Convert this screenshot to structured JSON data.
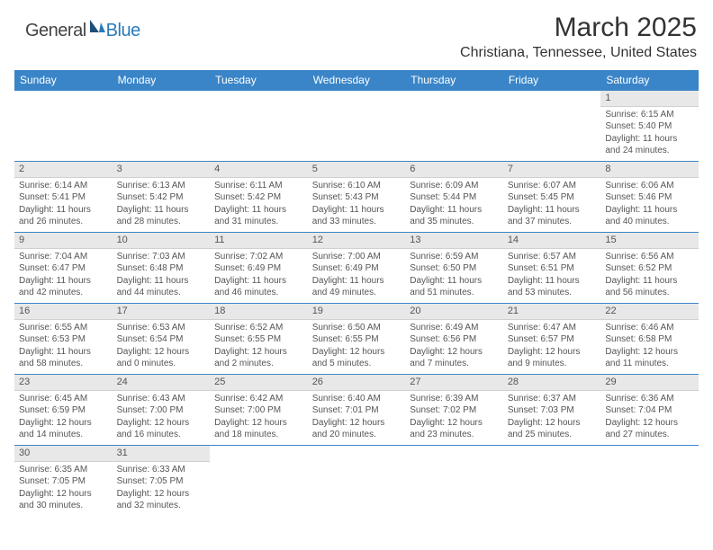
{
  "logo": {
    "general": "General",
    "blue": "Blue"
  },
  "title": "March 2025",
  "location": "Christiana, Tennessee, United States",
  "colors": {
    "header_bg": "#3a85c8",
    "header_text": "#ffffff",
    "divider": "#3a85c8",
    "daynum_bg": "#e8e8e8",
    "text": "#555555",
    "logo_blue": "#2a7ab8"
  },
  "weekdays": [
    "Sunday",
    "Monday",
    "Tuesday",
    "Wednesday",
    "Thursday",
    "Friday",
    "Saturday"
  ],
  "weeks": [
    [
      null,
      null,
      null,
      null,
      null,
      null,
      {
        "n": "1",
        "sr": "Sunrise: 6:15 AM",
        "ss": "Sunset: 5:40 PM",
        "dl": "Daylight: 11 hours and 24 minutes."
      }
    ],
    [
      {
        "n": "2",
        "sr": "Sunrise: 6:14 AM",
        "ss": "Sunset: 5:41 PM",
        "dl": "Daylight: 11 hours and 26 minutes."
      },
      {
        "n": "3",
        "sr": "Sunrise: 6:13 AM",
        "ss": "Sunset: 5:42 PM",
        "dl": "Daylight: 11 hours and 28 minutes."
      },
      {
        "n": "4",
        "sr": "Sunrise: 6:11 AM",
        "ss": "Sunset: 5:42 PM",
        "dl": "Daylight: 11 hours and 31 minutes."
      },
      {
        "n": "5",
        "sr": "Sunrise: 6:10 AM",
        "ss": "Sunset: 5:43 PM",
        "dl": "Daylight: 11 hours and 33 minutes."
      },
      {
        "n": "6",
        "sr": "Sunrise: 6:09 AM",
        "ss": "Sunset: 5:44 PM",
        "dl": "Daylight: 11 hours and 35 minutes."
      },
      {
        "n": "7",
        "sr": "Sunrise: 6:07 AM",
        "ss": "Sunset: 5:45 PM",
        "dl": "Daylight: 11 hours and 37 minutes."
      },
      {
        "n": "8",
        "sr": "Sunrise: 6:06 AM",
        "ss": "Sunset: 5:46 PM",
        "dl": "Daylight: 11 hours and 40 minutes."
      }
    ],
    [
      {
        "n": "9",
        "sr": "Sunrise: 7:04 AM",
        "ss": "Sunset: 6:47 PM",
        "dl": "Daylight: 11 hours and 42 minutes."
      },
      {
        "n": "10",
        "sr": "Sunrise: 7:03 AM",
        "ss": "Sunset: 6:48 PM",
        "dl": "Daylight: 11 hours and 44 minutes."
      },
      {
        "n": "11",
        "sr": "Sunrise: 7:02 AM",
        "ss": "Sunset: 6:49 PM",
        "dl": "Daylight: 11 hours and 46 minutes."
      },
      {
        "n": "12",
        "sr": "Sunrise: 7:00 AM",
        "ss": "Sunset: 6:49 PM",
        "dl": "Daylight: 11 hours and 49 minutes."
      },
      {
        "n": "13",
        "sr": "Sunrise: 6:59 AM",
        "ss": "Sunset: 6:50 PM",
        "dl": "Daylight: 11 hours and 51 minutes."
      },
      {
        "n": "14",
        "sr": "Sunrise: 6:57 AM",
        "ss": "Sunset: 6:51 PM",
        "dl": "Daylight: 11 hours and 53 minutes."
      },
      {
        "n": "15",
        "sr": "Sunrise: 6:56 AM",
        "ss": "Sunset: 6:52 PM",
        "dl": "Daylight: 11 hours and 56 minutes."
      }
    ],
    [
      {
        "n": "16",
        "sr": "Sunrise: 6:55 AM",
        "ss": "Sunset: 6:53 PM",
        "dl": "Daylight: 11 hours and 58 minutes."
      },
      {
        "n": "17",
        "sr": "Sunrise: 6:53 AM",
        "ss": "Sunset: 6:54 PM",
        "dl": "Daylight: 12 hours and 0 minutes."
      },
      {
        "n": "18",
        "sr": "Sunrise: 6:52 AM",
        "ss": "Sunset: 6:55 PM",
        "dl": "Daylight: 12 hours and 2 minutes."
      },
      {
        "n": "19",
        "sr": "Sunrise: 6:50 AM",
        "ss": "Sunset: 6:55 PM",
        "dl": "Daylight: 12 hours and 5 minutes."
      },
      {
        "n": "20",
        "sr": "Sunrise: 6:49 AM",
        "ss": "Sunset: 6:56 PM",
        "dl": "Daylight: 12 hours and 7 minutes."
      },
      {
        "n": "21",
        "sr": "Sunrise: 6:47 AM",
        "ss": "Sunset: 6:57 PM",
        "dl": "Daylight: 12 hours and 9 minutes."
      },
      {
        "n": "22",
        "sr": "Sunrise: 6:46 AM",
        "ss": "Sunset: 6:58 PM",
        "dl": "Daylight: 12 hours and 11 minutes."
      }
    ],
    [
      {
        "n": "23",
        "sr": "Sunrise: 6:45 AM",
        "ss": "Sunset: 6:59 PM",
        "dl": "Daylight: 12 hours and 14 minutes."
      },
      {
        "n": "24",
        "sr": "Sunrise: 6:43 AM",
        "ss": "Sunset: 7:00 PM",
        "dl": "Daylight: 12 hours and 16 minutes."
      },
      {
        "n": "25",
        "sr": "Sunrise: 6:42 AM",
        "ss": "Sunset: 7:00 PM",
        "dl": "Daylight: 12 hours and 18 minutes."
      },
      {
        "n": "26",
        "sr": "Sunrise: 6:40 AM",
        "ss": "Sunset: 7:01 PM",
        "dl": "Daylight: 12 hours and 20 minutes."
      },
      {
        "n": "27",
        "sr": "Sunrise: 6:39 AM",
        "ss": "Sunset: 7:02 PM",
        "dl": "Daylight: 12 hours and 23 minutes."
      },
      {
        "n": "28",
        "sr": "Sunrise: 6:37 AM",
        "ss": "Sunset: 7:03 PM",
        "dl": "Daylight: 12 hours and 25 minutes."
      },
      {
        "n": "29",
        "sr": "Sunrise: 6:36 AM",
        "ss": "Sunset: 7:04 PM",
        "dl": "Daylight: 12 hours and 27 minutes."
      }
    ],
    [
      {
        "n": "30",
        "sr": "Sunrise: 6:35 AM",
        "ss": "Sunset: 7:05 PM",
        "dl": "Daylight: 12 hours and 30 minutes."
      },
      {
        "n": "31",
        "sr": "Sunrise: 6:33 AM",
        "ss": "Sunset: 7:05 PM",
        "dl": "Daylight: 12 hours and 32 minutes."
      },
      null,
      null,
      null,
      null,
      null
    ]
  ]
}
